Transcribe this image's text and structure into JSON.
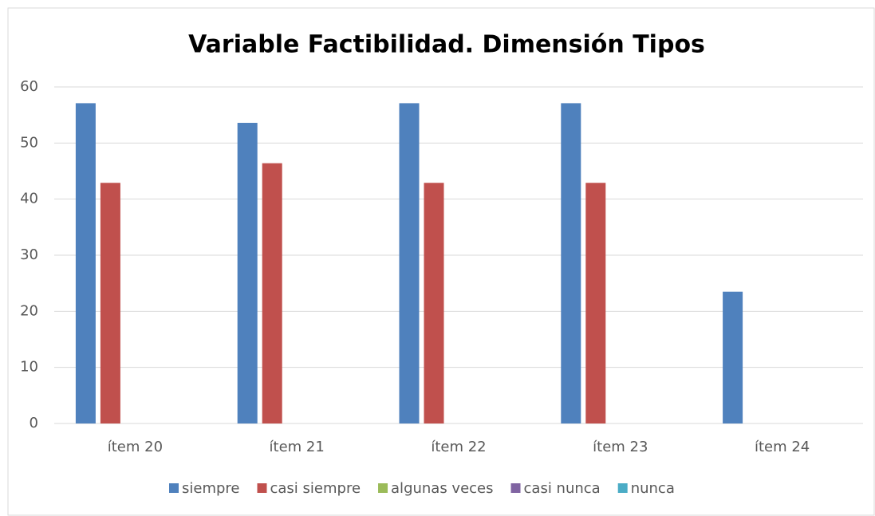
{
  "chart_data": {
    "type": "bar",
    "title": "Variable Factibilidad. Dimensión Tipos",
    "categories": [
      "ítem 20",
      "ítem 21",
      "ítem 22",
      "ítem 23",
      "ítem 24"
    ],
    "series": [
      {
        "name": "siempre",
        "color": "#4f81bd",
        "values": [
          57.1,
          53.6,
          57.1,
          57.1,
          23.5
        ]
      },
      {
        "name": "casi siempre",
        "color": "#c0504d",
        "values": [
          42.9,
          46.4,
          42.9,
          42.9,
          0
        ]
      },
      {
        "name": "algunas veces",
        "color": "#9bbb59",
        "values": [
          0,
          0,
          0,
          0,
          0
        ]
      },
      {
        "name": "casi nunca",
        "color": "#8064a2",
        "values": [
          0,
          0,
          0,
          0,
          0
        ]
      },
      {
        "name": "nunca",
        "color": "#4bacc6",
        "values": [
          0,
          0,
          0,
          0,
          0
        ]
      }
    ],
    "ylim": [
      0,
      60
    ],
    "yticks": [
      0,
      10,
      20,
      30,
      40,
      50,
      60
    ],
    "grid": true,
    "legend": "bottom"
  }
}
